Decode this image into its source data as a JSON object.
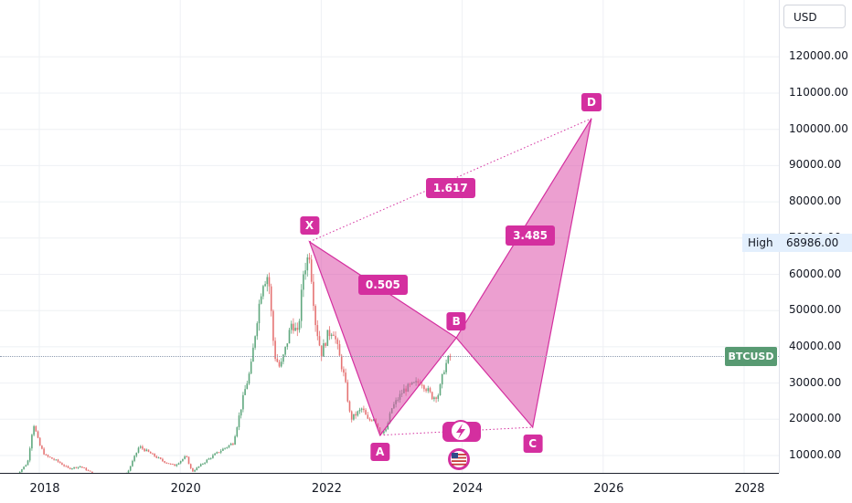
{
  "header": {
    "currency": "USD"
  },
  "symbol": "BTCUSD",
  "high_marker": {
    "label": "High",
    "value": "68986.00"
  },
  "colors": {
    "pattern": "#d42f9f",
    "pattern_fill": "rgba(221,80,170,0.55)",
    "up": "#5fa77d",
    "down": "#e57373",
    "grid": "#eef0f4",
    "price_label": "#589a72",
    "high_bg": "#e3effd"
  },
  "icons": [
    "lightning-icon",
    "us-flag-icon"
  ],
  "chart_data": {
    "type": "candlestick",
    "x_axis": {
      "ticks": [
        "2018",
        "2020",
        "2022",
        "2024",
        "2026",
        "2028"
      ]
    },
    "y_axis": {
      "ticks": [
        "10000.00",
        "20000.00",
        "30000.00",
        "40000.00",
        "50000.00",
        "60000.00",
        "70000.00",
        "80000.00",
        "90000.00",
        "100000.00",
        "110000.00",
        "120000.00"
      ],
      "range": [
        5000,
        134000
      ]
    },
    "current_price": 37400,
    "pattern": {
      "type": "harmonic XABCD",
      "points": [
        {
          "name": "X",
          "date": "2021-11",
          "value": 68986
        },
        {
          "name": "A",
          "date": "2022-11",
          "value": 15600
        },
        {
          "name": "B",
          "date": "2023-12",
          "value": 42500
        },
        {
          "name": "C",
          "date": "2025-01",
          "value": 17800
        },
        {
          "name": "D",
          "date": "2025-11",
          "value": 103000
        }
      ],
      "ratios": [
        {
          "label": "0.505",
          "between": "XA-AB"
        },
        {
          "label": "3.485",
          "between": "BC-CD"
        },
        {
          "label": "1.617",
          "between": "XD"
        }
      ]
    },
    "price_series": [
      {
        "date": "2017-09",
        "value": 4400
      },
      {
        "date": "2017-11",
        "value": 8000
      },
      {
        "date": "2017-12",
        "value": 19000
      },
      {
        "date": "2018-01",
        "value": 13000
      },
      {
        "date": "2018-02",
        "value": 10000
      },
      {
        "date": "2018-04",
        "value": 8500
      },
      {
        "date": "2018-06",
        "value": 6400
      },
      {
        "date": "2018-08",
        "value": 7000
      },
      {
        "date": "2018-11",
        "value": 4200
      },
      {
        "date": "2019-01",
        "value": 3600
      },
      {
        "date": "2019-04",
        "value": 5200
      },
      {
        "date": "2019-06",
        "value": 12500
      },
      {
        "date": "2019-08",
        "value": 10500
      },
      {
        "date": "2019-10",
        "value": 8500
      },
      {
        "date": "2019-12",
        "value": 7200
      },
      {
        "date": "2020-02",
        "value": 9800
      },
      {
        "date": "2020-03",
        "value": 5500
      },
      {
        "date": "2020-06",
        "value": 9300
      },
      {
        "date": "2020-08",
        "value": 11500
      },
      {
        "date": "2020-10",
        "value": 13500
      },
      {
        "date": "2020-12",
        "value": 28000
      },
      {
        "date": "2021-01",
        "value": 34000
      },
      {
        "date": "2021-02",
        "value": 47000
      },
      {
        "date": "2021-03",
        "value": 58000
      },
      {
        "date": "2021-04",
        "value": 60000
      },
      {
        "date": "2021-05",
        "value": 38000
      },
      {
        "date": "2021-06",
        "value": 34000
      },
      {
        "date": "2021-07",
        "value": 40000
      },
      {
        "date": "2021-08",
        "value": 47000
      },
      {
        "date": "2021-09",
        "value": 43000
      },
      {
        "date": "2021-10",
        "value": 61000
      },
      {
        "date": "2021-11",
        "value": 66000
      },
      {
        "date": "2021-12",
        "value": 47000
      },
      {
        "date": "2022-01",
        "value": 38000
      },
      {
        "date": "2022-02",
        "value": 43000
      },
      {
        "date": "2022-03",
        "value": 45000
      },
      {
        "date": "2022-04",
        "value": 38000
      },
      {
        "date": "2022-05",
        "value": 31000
      },
      {
        "date": "2022-06",
        "value": 20000
      },
      {
        "date": "2022-08",
        "value": 23000
      },
      {
        "date": "2022-09",
        "value": 19500
      },
      {
        "date": "2022-10",
        "value": 20500
      },
      {
        "date": "2022-11",
        "value": 16500
      },
      {
        "date": "2022-12",
        "value": 16800
      },
      {
        "date": "2023-01",
        "value": 23000
      },
      {
        "date": "2023-03",
        "value": 28000
      },
      {
        "date": "2023-04",
        "value": 29000
      },
      {
        "date": "2023-06",
        "value": 30500
      },
      {
        "date": "2023-08",
        "value": 26000
      },
      {
        "date": "2023-09",
        "value": 27000
      },
      {
        "date": "2023-10",
        "value": 34500
      },
      {
        "date": "2023-11",
        "value": 37500
      }
    ]
  }
}
